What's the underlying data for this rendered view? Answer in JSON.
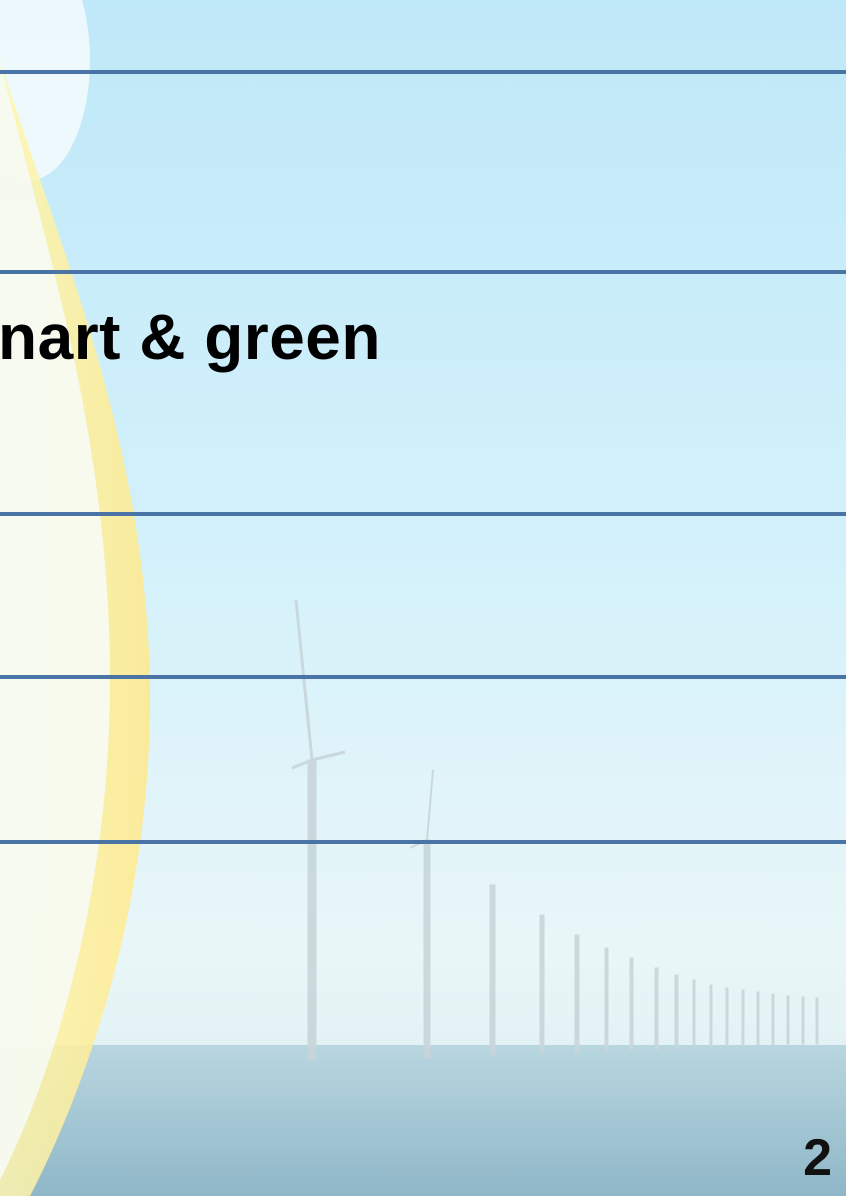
{
  "slide": {
    "title": "nart & green",
    "page_number": "2"
  }
}
